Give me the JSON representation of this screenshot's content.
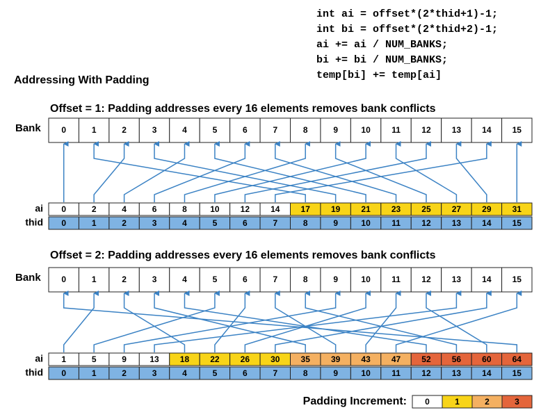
{
  "code": [
    "int ai = offset*(2*thid+1)-1;",
    "int bi = offset*(2*thid+2)-1;",
    "ai += ai / NUM_BANKS;",
    "bi += bi / NUM_BANKS;",
    "temp[bi] += temp[ai]"
  ],
  "heading": "Addressing With Padding",
  "sections": [
    {
      "title": "Offset = 1: Padding addresses every 16 elements removes bank conflicts",
      "bank_label": "Bank",
      "banks": [
        0,
        1,
        2,
        3,
        4,
        5,
        6,
        7,
        8,
        9,
        10,
        11,
        12,
        13,
        14,
        15
      ],
      "ai_label": "ai",
      "ai": [
        0,
        2,
        4,
        6,
        8,
        10,
        12,
        14,
        17,
        19,
        21,
        23,
        25,
        27,
        29,
        31
      ],
      "padding": [
        0,
        0,
        0,
        0,
        0,
        0,
        0,
        0,
        1,
        1,
        1,
        1,
        1,
        1,
        1,
        1
      ],
      "thid_label": "thid",
      "thid": [
        0,
        1,
        2,
        3,
        4,
        5,
        6,
        7,
        8,
        9,
        10,
        11,
        12,
        13,
        14,
        15
      ]
    },
    {
      "title": "Offset = 2: Padding addresses every 16 elements removes bank conflicts",
      "bank_label": "Bank",
      "banks": [
        0,
        1,
        2,
        3,
        4,
        5,
        6,
        7,
        8,
        9,
        10,
        11,
        12,
        13,
        14,
        15
      ],
      "ai_label": "ai",
      "ai": [
        1,
        5,
        9,
        13,
        18,
        22,
        26,
        30,
        35,
        39,
        43,
        47,
        52,
        56,
        60,
        64
      ],
      "padding": [
        0,
        0,
        0,
        0,
        1,
        1,
        1,
        1,
        2,
        2,
        2,
        2,
        3,
        3,
        3,
        3
      ],
      "thid_label": "thid",
      "thid": [
        0,
        1,
        2,
        3,
        4,
        5,
        6,
        7,
        8,
        9,
        10,
        11,
        12,
        13,
        14,
        15
      ]
    }
  ],
  "legend": {
    "title": "Padding Increment:",
    "items": [
      {
        "label": "0",
        "color": "#ffffff"
      },
      {
        "label": "1",
        "color": "#f8d418"
      },
      {
        "label": "2",
        "color": "#f4b061"
      },
      {
        "label": "3",
        "color": "#e4653b"
      }
    ]
  },
  "thid_color": "#7fb3e3",
  "arrow_color": "#3b82c4"
}
